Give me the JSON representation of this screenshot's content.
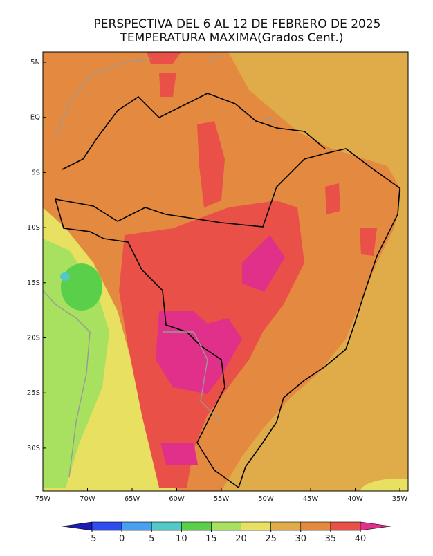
{
  "header": {
    "title": "PERSPECTIVA DEL 6 AL 12 DE FEBRERO DE 2025",
    "subtitle": "TEMPERATURA MAXIMA(Grados Cent.)"
  },
  "map": {
    "lat_labels": [
      "5N",
      "EQ",
      "5S",
      "10S",
      "15S",
      "20S",
      "25S",
      "30S"
    ],
    "lon_labels": [
      "75W",
      "70W",
      "65W",
      "60W",
      "55W",
      "50W",
      "45W",
      "40W",
      "35W"
    ]
  },
  "colorbar": {
    "levels": [
      -5,
      0,
      5,
      10,
      15,
      20,
      25,
      30,
      35,
      40
    ],
    "colors": [
      "#1c1cb4",
      "#2f4cf0",
      "#4aa0f0",
      "#52c8c8",
      "#5ad04a",
      "#a8e060",
      "#e8e060",
      "#e0ac4a",
      "#e48a40",
      "#e85048",
      "#e0308a"
    ]
  }
}
